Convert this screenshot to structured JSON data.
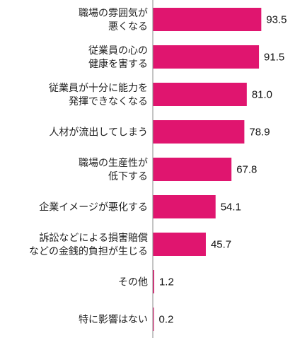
{
  "chart_data": {
    "type": "bar",
    "orientation": "horizontal",
    "bar_color": "#e0156f",
    "axis_color": "#8a8a8a",
    "categories": [
      [
        "職場の雰囲気が",
        "悪くなる"
      ],
      [
        "従業員の心の",
        "健康を害する"
      ],
      [
        "従業員が十分に能力を",
        "発揮できなくなる"
      ],
      [
        "人材が流出してしまう"
      ],
      [
        "職場の生産性が",
        "低下する"
      ],
      [
        "企業イメージが悪化する"
      ],
      [
        "訴訟などによる損害賠償",
        "などの金銭的負担が生じる"
      ],
      [
        "その他"
      ],
      [
        "特に影響はない"
      ]
    ],
    "values": [
      93.5,
      91.5,
      81.0,
      78.9,
      67.8,
      54.1,
      45.7,
      1.2,
      0.2
    ],
    "value_labels": [
      "93.5",
      "91.5",
      "81.0",
      "78.9",
      "67.8",
      "54.1",
      "45.7",
      "1.2",
      "0.2"
    ],
    "xlim": [
      0,
      100
    ],
    "grid": false,
    "legend": "none"
  }
}
